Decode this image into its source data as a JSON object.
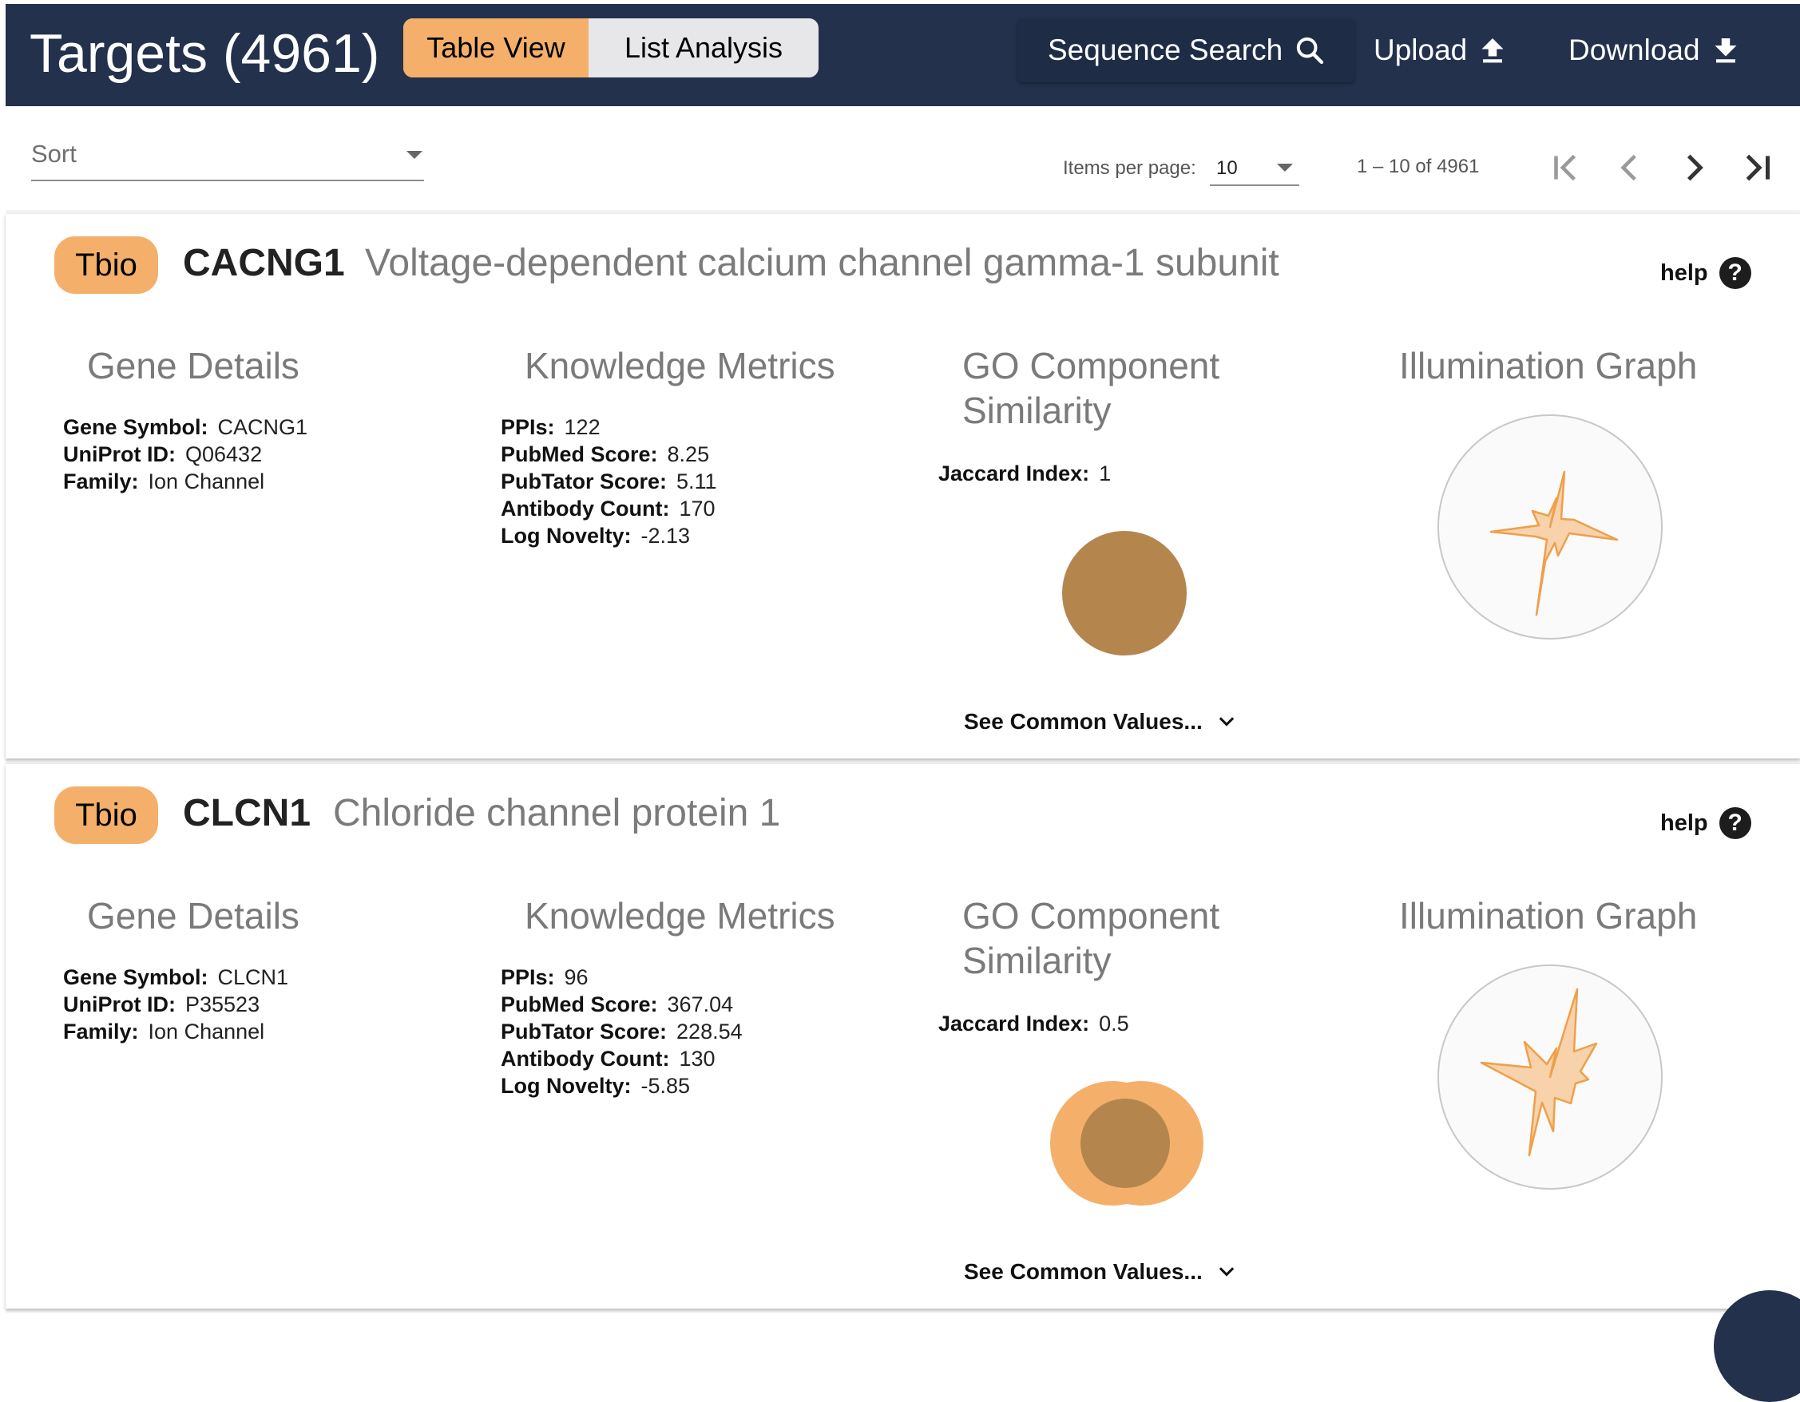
{
  "header": {
    "title": "Targets (4961)",
    "view_toggle": {
      "table_view": "Table View",
      "list_analysis": "List Analysis"
    },
    "sequence_search": "Sequence Search",
    "upload": "Upload",
    "download": "Download"
  },
  "toolbar": {
    "sort_label": "Sort",
    "items_per_page_label": "Items per page:",
    "items_per_page_value": "10",
    "range_label": "1 – 10 of 4961"
  },
  "colors": {
    "header_bg": "#23314c",
    "accent_orange": "#f4b06a",
    "venn_full": "#b4864e",
    "radar_fill": "#f4b06a"
  },
  "icons": [
    "search-icon",
    "upload-icon",
    "download-icon",
    "first-page-icon",
    "prev-page-icon",
    "next-page-icon",
    "last-page-icon",
    "help-icon",
    "chevron-down-icon"
  ],
  "targets": [
    {
      "tdl": "Tbio",
      "symbol": "CACNG1",
      "name": "Voltage-dependent calcium channel gamma-1 subunit",
      "help": "help",
      "gene_details": {
        "title": "Gene Details",
        "gene_symbol_label": "Gene Symbol:",
        "gene_symbol": "CACNG1",
        "uniprot_label": "UniProt ID:",
        "uniprot": "Q06432",
        "family_label": "Family:",
        "family": "Ion Channel"
      },
      "knowledge_metrics": {
        "title": "Knowledge Metrics",
        "ppis_label": "PPIs:",
        "ppis": "122",
        "pubmed_label": "PubMed Score:",
        "pubmed": "8.25",
        "pubtator_label": "PubTator Score:",
        "pubtator": "5.11",
        "antibody_label": "Antibody Count:",
        "antibody": "170",
        "novelty_label": "Log Novelty:",
        "novelty": "-2.13"
      },
      "go_similarity": {
        "title_line1": "GO Component",
        "title_line2": "Similarity",
        "jaccard_label": "Jaccard Index:",
        "jaccard": "1",
        "see_common": "See Common Values..."
      },
      "illumination": {
        "title": "Illumination Graph"
      }
    },
    {
      "tdl": "Tbio",
      "symbol": "CLCN1",
      "name": "Chloride channel protein 1",
      "help": "help",
      "gene_details": {
        "title": "Gene Details",
        "gene_symbol_label": "Gene Symbol:",
        "gene_symbol": "CLCN1",
        "uniprot_label": "UniProt ID:",
        "uniprot": "P35523",
        "family_label": "Family:",
        "family": "Ion Channel"
      },
      "knowledge_metrics": {
        "title": "Knowledge Metrics",
        "ppis_label": "PPIs:",
        "ppis": "96",
        "pubmed_label": "PubMed Score:",
        "pubmed": "367.04",
        "pubtator_label": "PubTator Score:",
        "pubtator": "228.54",
        "antibody_label": "Antibody Count:",
        "antibody": "130",
        "novelty_label": "Log Novelty:",
        "novelty": "-5.85"
      },
      "go_similarity": {
        "title_line1": "GO Component",
        "title_line2": "Similarity",
        "jaccard_label": "Jaccard Index:",
        "jaccard": "0.5",
        "see_common": "See Common Values..."
      },
      "illumination": {
        "title": "Illumination Graph"
      }
    }
  ]
}
